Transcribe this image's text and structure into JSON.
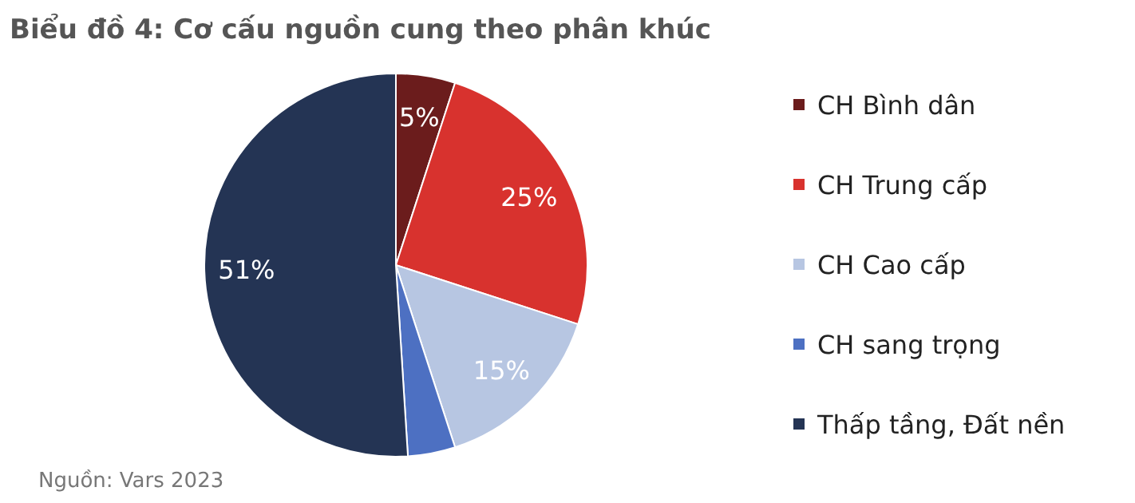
{
  "chart_data": {
    "type": "pie",
    "title": "Biểu đồ 4: Cơ cấu nguồn cung theo phân khúc",
    "categories": [
      "CH Bình dân",
      "CH Trung cấp",
      "CH Cao cấp",
      "CH sang trọng",
      "Thấp tầng, Đất nền"
    ],
    "values": [
      5,
      25,
      15,
      4,
      51
    ],
    "value_labels": [
      "5%",
      "25%",
      "15%",
      null,
      "51%"
    ],
    "colors": [
      "#6b1c1c",
      "#d8322e",
      "#b7c6e2",
      "#4d70c2",
      "#243454"
    ],
    "legend": "right",
    "annotations": [
      "Nguồn: Vars 2023"
    ]
  }
}
